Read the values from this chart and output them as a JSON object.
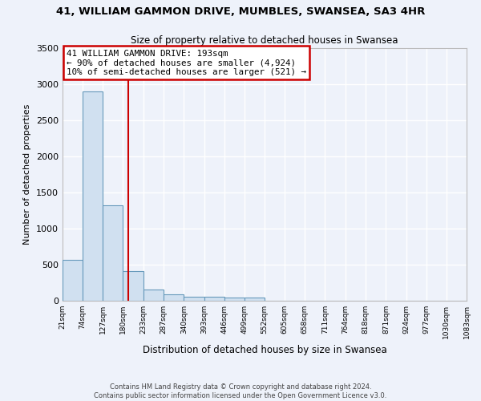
{
  "title_line1": "41, WILLIAM GAMMON DRIVE, MUMBLES, SWANSEA, SA3 4HR",
  "title_line2": "Size of property relative to detached houses in Swansea",
  "xlabel": "Distribution of detached houses by size in Swansea",
  "ylabel": "Number of detached properties",
  "annotation_line1": "41 WILLIAM GAMMON DRIVE: 193sqm",
  "annotation_line2": "← 90% of detached houses are smaller (4,924)",
  "annotation_line3": "10% of semi-detached houses are larger (521) →",
  "property_line_x": 193,
  "bin_edges": [
    21,
    74,
    127,
    180,
    233,
    287,
    340,
    393,
    446,
    499,
    552,
    605,
    658,
    711,
    764,
    818,
    871,
    924,
    977,
    1030,
    1083
  ],
  "bar_heights": [
    570,
    2900,
    1320,
    410,
    155,
    85,
    60,
    55,
    45,
    45,
    0,
    0,
    0,
    0,
    0,
    0,
    0,
    0,
    0,
    0
  ],
  "bar_color": "#d0e0f0",
  "bar_edge_color": "#6699bb",
  "line_color": "#cc0000",
  "background_color": "#eef2fa",
  "grid_color": "#ffffff",
  "annotation_box_color": "#ffffff",
  "annotation_border_color": "#cc0000",
  "footer_line1": "Contains HM Land Registry data © Crown copyright and database right 2024.",
  "footer_line2": "Contains public sector information licensed under the Open Government Licence v3.0.",
  "ylim": [
    0,
    3500
  ],
  "yticks": [
    0,
    500,
    1000,
    1500,
    2000,
    2500,
    3000,
    3500
  ]
}
